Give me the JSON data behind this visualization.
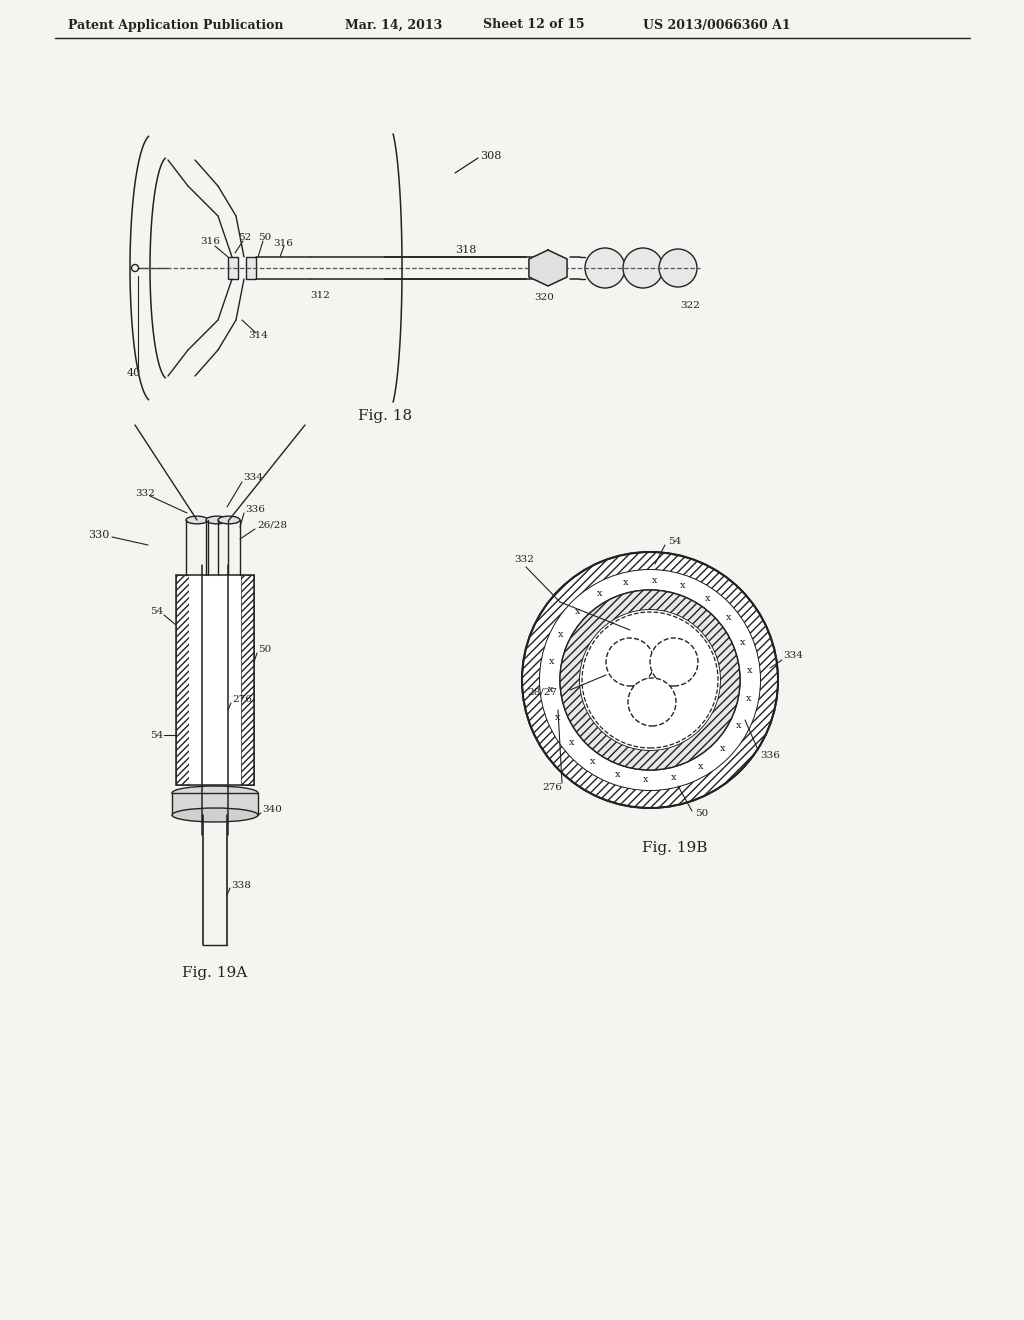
{
  "background_color": "#f5f4f0",
  "header_text": "Patent Application Publication",
  "header_date": "Mar. 14, 2013",
  "header_sheet": "Sheet 12 of 15",
  "header_patent": "US 2013/0066360 A1",
  "fig18_label": "Fig. 18",
  "fig19a_label": "Fig. 19A",
  "fig19b_label": "Fig. 19B",
  "line_color": "#222222"
}
